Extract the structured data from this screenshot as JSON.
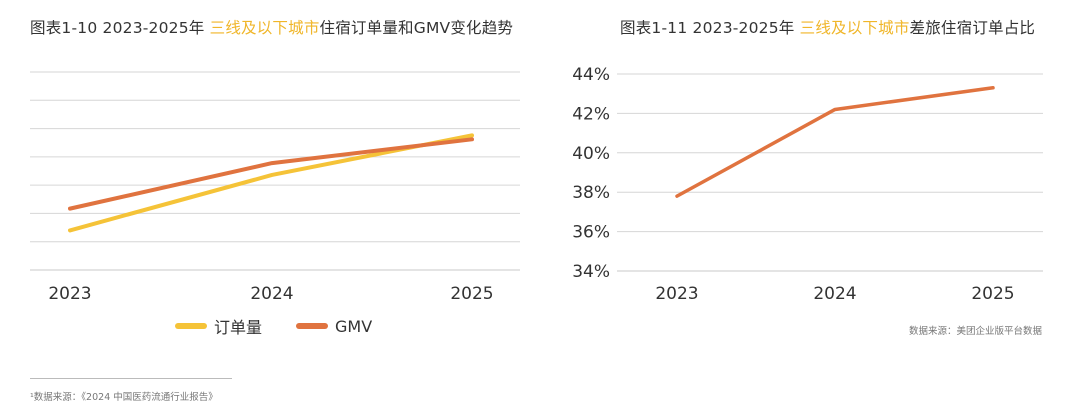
{
  "colors": {
    "order": "#f5c338",
    "gmv": "#e0733f",
    "grid": "#d6d6d6",
    "highlight": "#f0b62a"
  },
  "chart_data": [
    {
      "type": "line",
      "title_prefix": "图表1-10 2023-2025年 ",
      "title_highlight": "三线及以下城市",
      "title_suffix": "住宿订单量和GMV变化趋势",
      "categories": [
        "2023",
        "2024",
        "2025"
      ],
      "ylim": [
        0,
        10
      ],
      "yticks_shown": false,
      "grid": true,
      "series": [
        {
          "name": "订单量",
          "color": "#f5c338",
          "values": [
            2.0,
            4.8,
            6.8
          ]
        },
        {
          "name": "GMV",
          "color": "#e0733f",
          "values": [
            3.1,
            5.4,
            6.6
          ]
        }
      ],
      "legend": {
        "position": "bottom",
        "items": [
          "订单量",
          "GMV"
        ]
      }
    },
    {
      "type": "line",
      "title_prefix": "图表1-11 2023-2025年 ",
      "title_highlight": "三线及以下城市",
      "title_suffix": "差旅住宿订单占比",
      "categories": [
        "2023",
        "2024",
        "2025"
      ],
      "ylim": [
        34,
        44
      ],
      "yticks": [
        "34%",
        "36%",
        "38%",
        "40%",
        "42%",
        "44%"
      ],
      "grid": true,
      "series": [
        {
          "name": "差旅住宿订单占比",
          "color": "#e0733f",
          "values": [
            37.8,
            42.2,
            43.3
          ]
        }
      ],
      "source": "数据来源：美团企业版平台数据"
    }
  ],
  "footnote": "¹数据来源：《2024 中国医药流通行业报告》"
}
